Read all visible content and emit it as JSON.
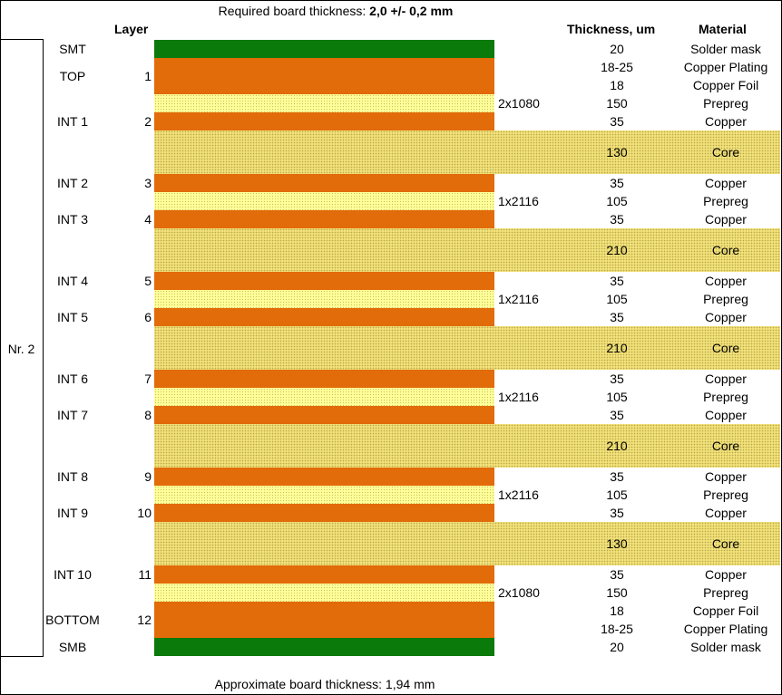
{
  "header": {
    "required_prefix": "Required board thickness: ",
    "required_value": "2,0 +/- 0,2 mm",
    "col_layer": "Layer",
    "col_thickness": "Thickness, um",
    "col_material": "Material",
    "approx": "Approximate board thickness: 1,94 mm"
  },
  "stack_label": "Nr. 2",
  "colors": {
    "solder_mask": "#0a7a0a",
    "copper": "#e26b0a",
    "prepreg": "#ffff99",
    "core": "#f2e27a"
  },
  "layers": [
    {
      "type": "mask",
      "thickness": "20",
      "material": "Solder mask",
      "name": "SMT",
      "num": ""
    },
    {
      "type": "copper2",
      "thickness": "18-25",
      "thickness2": "18",
      "material": "Copper Plating",
      "material2": "Copper Foil",
      "name": "TOP",
      "num": "1"
    },
    {
      "type": "prepreg",
      "thickness": "150",
      "material": "Prepreg",
      "glass": "2x1080"
    },
    {
      "type": "copper",
      "thickness": "35",
      "material": "Copper",
      "name": "INT 1",
      "num": "2"
    },
    {
      "type": "core",
      "thickness": "130",
      "material": "Core"
    },
    {
      "type": "copper",
      "thickness": "35",
      "material": "Copper",
      "name": "INT 2",
      "num": "3"
    },
    {
      "type": "prepreg",
      "thickness": "105",
      "material": "Prepreg",
      "glass": "1x2116"
    },
    {
      "type": "copper",
      "thickness": "35",
      "material": "Copper",
      "name": "INT 3",
      "num": "4"
    },
    {
      "type": "core",
      "thickness": "210",
      "material": "Core"
    },
    {
      "type": "copper",
      "thickness": "35",
      "material": "Copper",
      "name": "INT 4",
      "num": "5"
    },
    {
      "type": "prepreg",
      "thickness": "105",
      "material": "Prepreg",
      "glass": "1x2116"
    },
    {
      "type": "copper",
      "thickness": "35",
      "material": "Copper",
      "name": "INT 5",
      "num": "6"
    },
    {
      "type": "core",
      "thickness": "210",
      "material": "Core"
    },
    {
      "type": "copper",
      "thickness": "35",
      "material": "Copper",
      "name": "INT 6",
      "num": "7"
    },
    {
      "type": "prepreg",
      "thickness": "105",
      "material": "Prepreg",
      "glass": "1x2116"
    },
    {
      "type": "copper",
      "thickness": "35",
      "material": "Copper",
      "name": "INT 7",
      "num": "8"
    },
    {
      "type": "core",
      "thickness": "210",
      "material": "Core"
    },
    {
      "type": "copper",
      "thickness": "35",
      "material": "Copper",
      "name": "INT 8",
      "num": "9"
    },
    {
      "type": "prepreg",
      "thickness": "105",
      "material": "Prepreg",
      "glass": "1x2116"
    },
    {
      "type": "copper",
      "thickness": "35",
      "material": "Copper",
      "name": "INT 9",
      "num": "10"
    },
    {
      "type": "core",
      "thickness": "130",
      "material": "Core"
    },
    {
      "type": "copper",
      "thickness": "35",
      "material": "Copper",
      "name": "INT 10",
      "num": "11"
    },
    {
      "type": "prepreg",
      "thickness": "150",
      "material": "Prepreg",
      "glass": "2x1080"
    },
    {
      "type": "copper2",
      "thickness": "18",
      "thickness2": "18-25",
      "material": "Copper Foil",
      "material2": "Copper Plating",
      "name": "BOTTOM",
      "num": "12"
    },
    {
      "type": "mask",
      "thickness": "20",
      "material": "Solder mask",
      "name": "SMB",
      "num": ""
    }
  ]
}
